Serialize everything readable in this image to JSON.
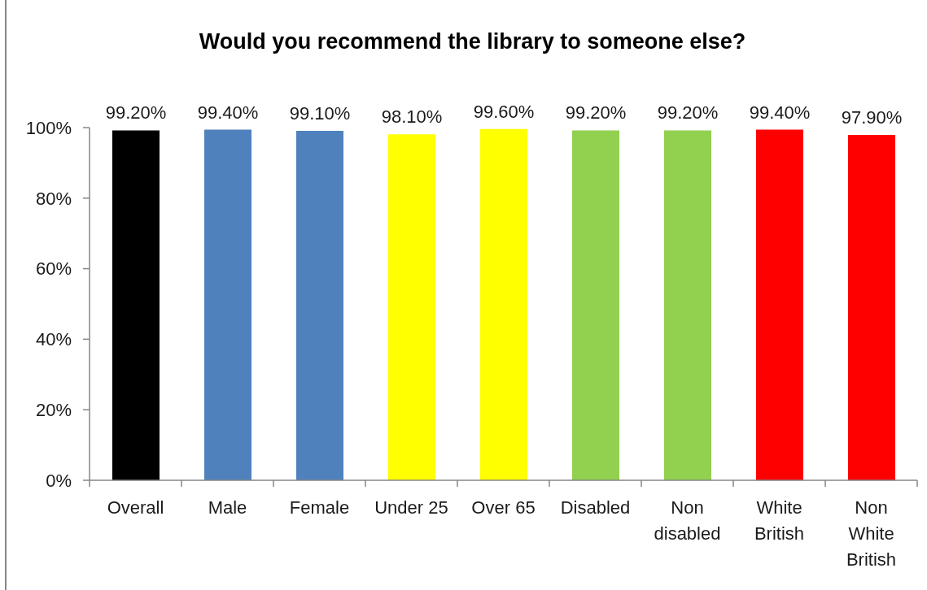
{
  "chart_data": {
    "type": "bar",
    "title": "Would you recommend the library to someone else?",
    "categories": [
      "Overall",
      "Male",
      "Female",
      "Under 25",
      "Over 65",
      "Disabled",
      "Non disabled",
      "White British",
      "Non White British"
    ],
    "values": [
      99.2,
      99.4,
      99.1,
      98.1,
      99.6,
      99.2,
      99.2,
      99.4,
      97.9
    ],
    "colors": [
      "#000000",
      "#4f81bd",
      "#4f81bd",
      "#ffff00",
      "#ffff00",
      "#92d050",
      "#92d050",
      "#ff0000",
      "#ff0000"
    ],
    "value_labels": [
      "99.20%",
      "99.40%",
      "99.10%",
      "98.10%",
      "99.60%",
      "99.20%",
      "99.20%",
      "99.40%",
      "97.90%"
    ],
    "ylim": [
      0,
      100
    ],
    "yticks": [
      {
        "value": 0,
        "label": "0%"
      },
      {
        "value": 20,
        "label": "20%"
      },
      {
        "value": 40,
        "label": "40%"
      },
      {
        "value": 60,
        "label": "60%"
      },
      {
        "value": 80,
        "label": "80%"
      },
      {
        "value": 100,
        "label": "100%"
      }
    ]
  }
}
